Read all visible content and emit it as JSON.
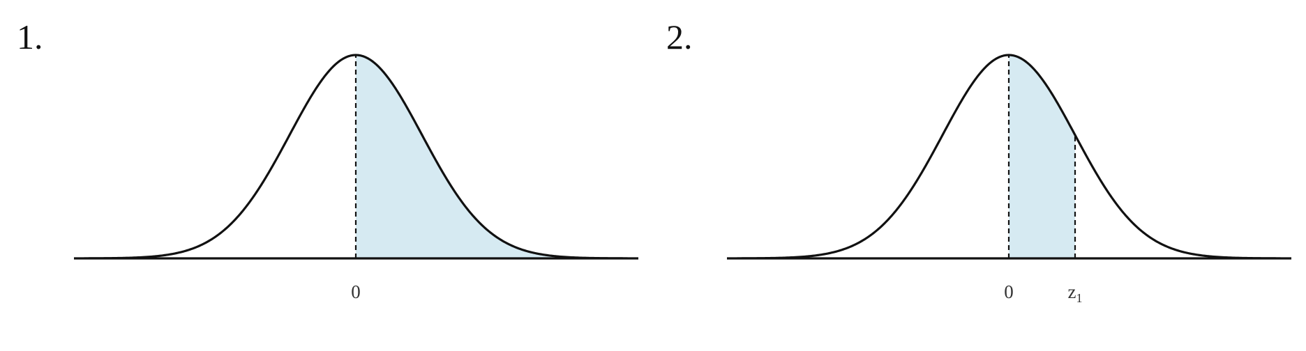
{
  "colors": {
    "shade": "#d6eaf2",
    "curve": "#111111",
    "axis": "#111111",
    "dash": "#111111"
  },
  "panels": [
    {
      "label": "1.",
      "shade_from": 0,
      "shade_to": "inf",
      "ticks": [
        {
          "value": 0,
          "text": "0",
          "subscript": ""
        }
      ],
      "dashed_lines": [
        0
      ]
    },
    {
      "label": "2.",
      "shade_from": 0,
      "shade_to": 1.0,
      "ticks": [
        {
          "value": 0,
          "text": "0",
          "subscript": ""
        },
        {
          "value": 1.0,
          "text": "z",
          "subscript": "1"
        }
      ],
      "dashed_lines": [
        0,
        1.0
      ]
    }
  ]
}
